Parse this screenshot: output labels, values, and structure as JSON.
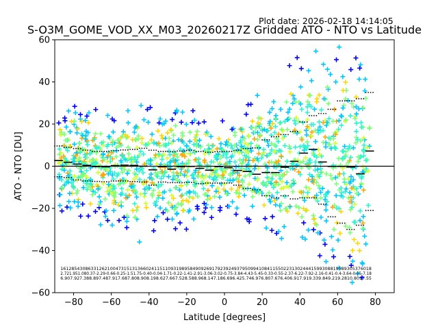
{
  "header": {
    "plot_date": "Plot date: 2026-02-18 14:14:05",
    "title": "S-O3M_GOME_VOD_XX_M03_20260217Z Gridded ATO - NTO vs Latitude"
  },
  "chart_data": {
    "type": "scatter",
    "title": "S-O3M_GOME_VOD_XX_M03_20260217Z Gridded ATO - NTO vs Latitude",
    "xlabel": "Latitude [degrees]",
    "ylabel": "ATO - NTO [DU]",
    "xlim": [
      -90,
      90
    ],
    "ylim": [
      -60,
      60
    ],
    "xticks": [
      -80,
      -60,
      -40,
      -20,
      0,
      20,
      40,
      60,
      80
    ],
    "xtick_labels": [
      "−80",
      "−60",
      "−40",
      "−20",
      "0",
      "20",
      "40",
      "60",
      "80"
    ],
    "yticks": [
      -60,
      -40,
      -20,
      0,
      20,
      40,
      60
    ],
    "ytick_labels": [
      "−60",
      "−40",
      "−20",
      "0",
      "20",
      "40",
      "60"
    ],
    "zero_line": 0,
    "marker": "+",
    "point_colors": [
      "#0000ff",
      "#00c8ff",
      "#2bf5d0",
      "#7cff79",
      "#d0ff2b",
      "#ffd700",
      "#ffa500"
    ],
    "bin_centers": [
      -88,
      -83,
      -78,
      -73,
      -68,
      -63,
      -58,
      -53,
      -48,
      -43,
      -38,
      -33,
      -28,
      -23,
      -18,
      -13,
      -8,
      -3,
      2,
      7,
      12,
      17,
      22,
      27,
      32,
      37,
      42,
      47,
      52,
      57,
      62,
      67,
      72,
      77
    ],
    "median": [
      2.7,
      1.9,
      1.0,
      0.4,
      -0.2,
      -0.3,
      0.3,
      0.5,
      0.4,
      0.0,
      -1.7,
      -0.2,
      -1.4,
      -0.2,
      -0.1,
      -1.0,
      -1.9,
      -0.2,
      -0.7,
      -2.0,
      -2.5,
      -3.8,
      -3.0,
      -3.0,
      -0.5,
      2.3,
      6.2,
      8.0,
      2.0,
      -0.1,
      -0.1,
      -0.4,
      -3.6,
      7.2
    ],
    "std_upper": [
      9.6,
      9.0,
      8.4,
      7.6,
      7.0,
      7.0,
      7.4,
      7.7,
      8.0,
      8.5,
      7.6,
      7.0,
      6.9,
      7.2,
      7.5,
      7.0,
      6.6,
      6.9,
      7.0,
      7.5,
      8.4,
      8.7,
      12.5,
      14.0,
      15.0,
      16.5,
      21.0,
      24.0,
      25.0,
      27.0,
      31.0,
      31.0,
      32.0,
      35.0
    ],
    "std_lower": [
      -5.0,
      -5.4,
      -6.5,
      -7.0,
      -7.2,
      -7.4,
      -7.0,
      -7.0,
      -7.3,
      -7.5,
      -9.0,
      -7.5,
      -7.8,
      -7.8,
      -7.7,
      -8.3,
      -8.0,
      -8.0,
      -8.0,
      -9.0,
      -10.5,
      -11.2,
      -14.0,
      -15.0,
      -14.0,
      -15.5,
      -15.0,
      -15.0,
      -18.0,
      -24.0,
      -27.0,
      -30.0,
      -28.0,
      -21.0
    ],
    "band_upper": [
      22,
      24,
      25,
      24,
      22,
      21,
      20,
      21,
      22,
      22,
      21,
      21,
      22,
      22,
      21,
      20,
      19,
      17,
      17,
      20,
      23,
      27,
      28,
      30,
      36,
      42,
      45,
      44,
      45,
      44,
      46,
      44,
      42,
      38
    ],
    "band_lower": [
      -15,
      -18,
      -20,
      -21,
      -22,
      -22,
      -23,
      -26,
      -28,
      -30,
      -28,
      -24,
      -24,
      -25,
      -23,
      -20,
      -20,
      -17,
      -17,
      -18,
      -20,
      -22,
      -23,
      -25,
      -27,
      -27,
      -30,
      -33,
      -34,
      -36,
      -38,
      -46,
      -50,
      -40
    ],
    "stats_rows": [
      "16128543086331262100473151313660241151109319895849092691792392493795099410841155022313024441599308819589305376018",
      "2.721.951.080.37-2.29-0.66-0.25-1.51.75-0.40-0.04-1.71-0.22-1.41-2.91-3.06-3.02-0.75-3.84-4.43-5.45-0.33-0.55-2.37-6.22-7.92-2.16-0.41-0.4-3.64-0.05-7.18",
      "6.907.927.388.897.487.917.687.808.908.198.627.667.528.588.968.147.186.696.425.746.976.807.676.406.917.919.339.849.219.2810.8017.55"
    ]
  }
}
